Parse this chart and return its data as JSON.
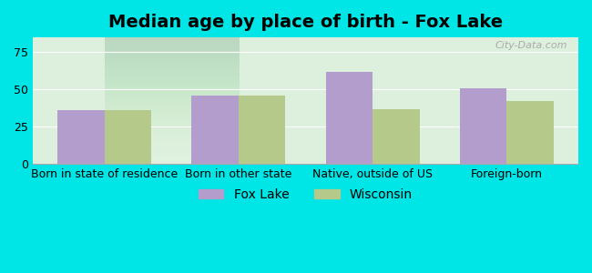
{
  "title": "Median age by place of birth - Fox Lake",
  "categories": [
    "Born in state of residence",
    "Born in other state",
    "Native, outside of US",
    "Foreign-born"
  ],
  "fox_lake": [
    36,
    46,
    62,
    51
  ],
  "wisconsin": [
    36,
    46,
    37,
    42
  ],
  "fox_lake_color": "#b39dcc",
  "wisconsin_color": "#b5c98a",
  "background_color": "#00e5e5",
  "plot_bg_gradient_top": "#e8f5e8",
  "plot_bg_gradient_bottom": "#f0f8f0",
  "ylim": [
    0,
    85
  ],
  "yticks": [
    0,
    25,
    50,
    75
  ],
  "bar_width": 0.35,
  "legend_labels": [
    "Fox Lake",
    "Wisconsin"
  ],
  "title_fontsize": 14,
  "label_fontsize": 9
}
